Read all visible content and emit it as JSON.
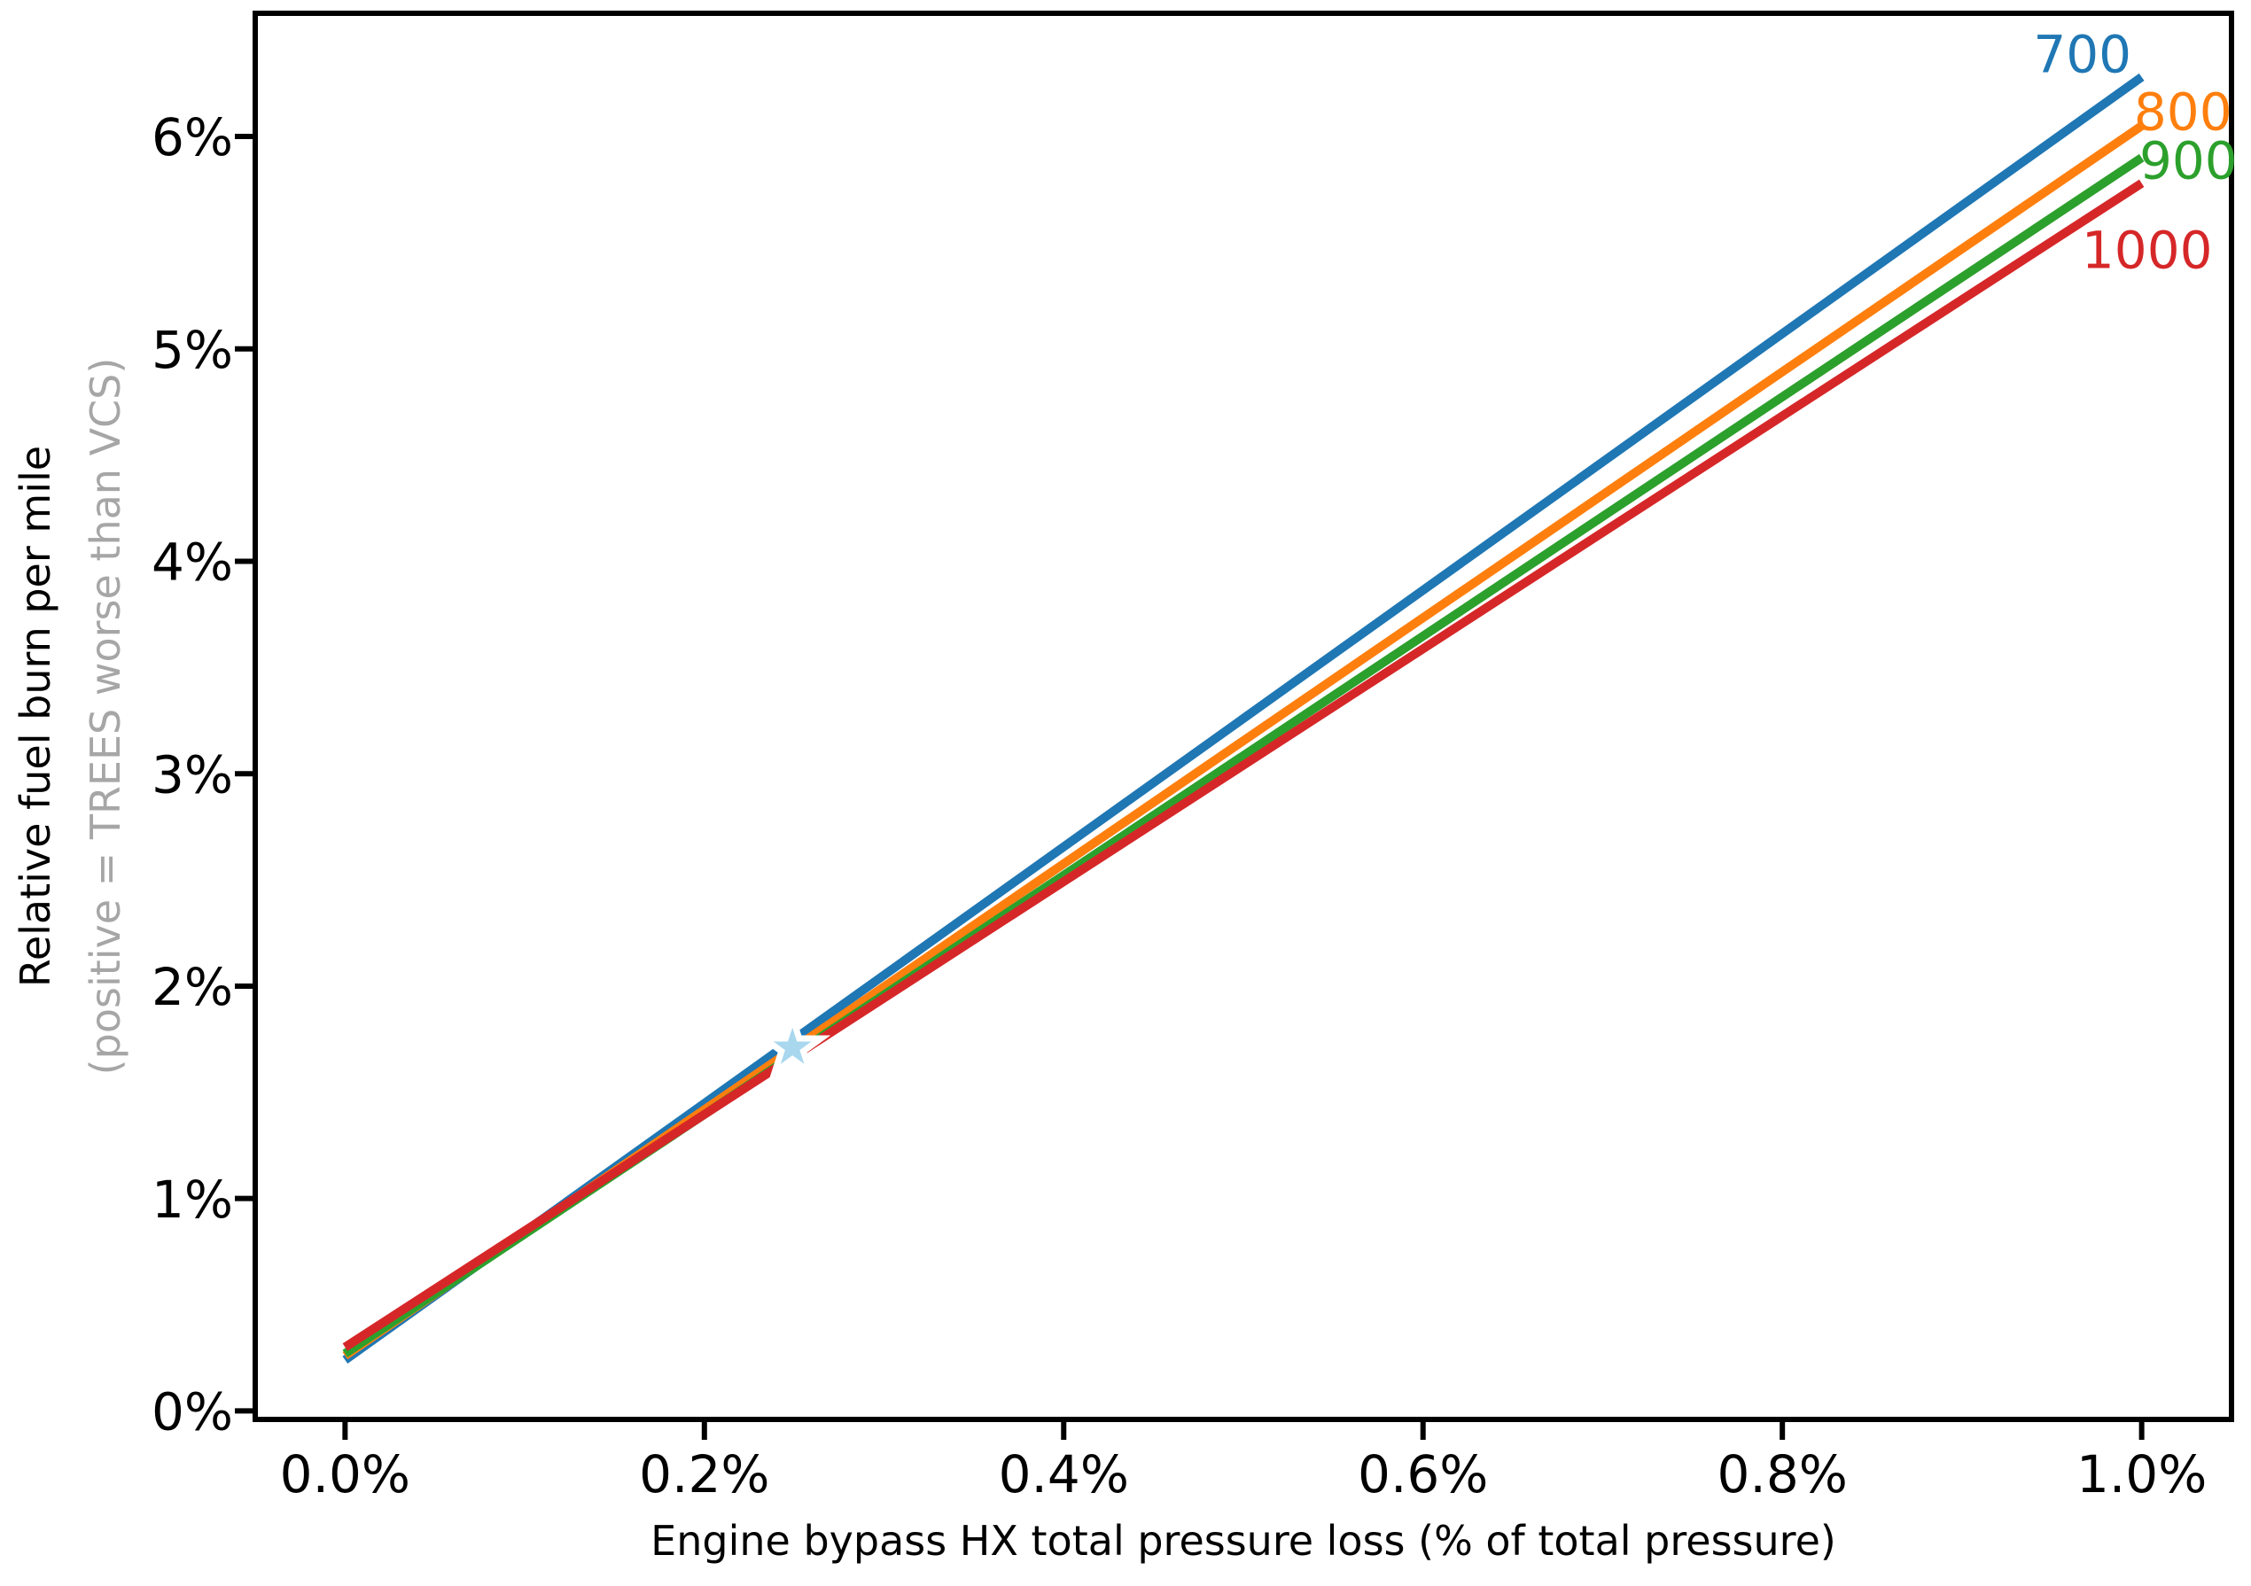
{
  "chart_data": {
    "type": "line",
    "title": "",
    "xlabel": "Engine bypass HX total pressure loss (% of total pressure)",
    "ylabel": "Relative fuel burn per mile",
    "ylabel_note": "(positive = TREES worse than VCS)",
    "ylabel_note_color": "#a6a6a6",
    "axis_color": "#000000",
    "grid": false,
    "legend_position": "inline-end-of-line-labels",
    "xlim": [
      -0.05,
      1.05
    ],
    "ylim": [
      -0.04,
      6.58
    ],
    "x_ticks": {
      "values": [
        0.0,
        0.2,
        0.4,
        0.6,
        0.8,
        1.0
      ],
      "labels": [
        "0.0%",
        "0.2%",
        "0.4%",
        "0.6%",
        "0.8%",
        "1.0%"
      ]
    },
    "y_ticks": {
      "values": [
        0,
        1,
        2,
        3,
        4,
        5,
        6
      ],
      "labels": [
        "0%",
        "1%",
        "2%",
        "3%",
        "4%",
        "5%",
        "6%"
      ]
    },
    "series": [
      {
        "name": "700",
        "color": "#1f77b4",
        "x": [
          0.0,
          1.0
        ],
        "y": [
          0.24,
          6.28
        ],
        "label_pos": {
          "x": 0.967,
          "y": 6.39
        }
      },
      {
        "name": "800",
        "color": "#ff7f0e",
        "x": [
          0.0,
          1.0
        ],
        "y": [
          0.26,
          6.05
        ],
        "label_pos": {
          "x": 1.023,
          "y": 6.12
        }
      },
      {
        "name": "900",
        "color": "#2ca02c",
        "x": [
          0.0,
          1.0
        ],
        "y": [
          0.27,
          5.9
        ],
        "label_pos": {
          "x": 1.026,
          "y": 5.89
        }
      },
      {
        "name": "1000",
        "color": "#d62728",
        "x": [
          0.0,
          1.0
        ],
        "y": [
          0.3,
          5.78
        ],
        "label_pos": {
          "x": 1.003,
          "y": 5.47
        }
      }
    ],
    "marker": {
      "type": "star",
      "x": 0.249,
      "y": 1.71,
      "fill_color": "#a8d7ee",
      "edge_color": "#ffffff",
      "semantic": "design-point-marker"
    }
  }
}
